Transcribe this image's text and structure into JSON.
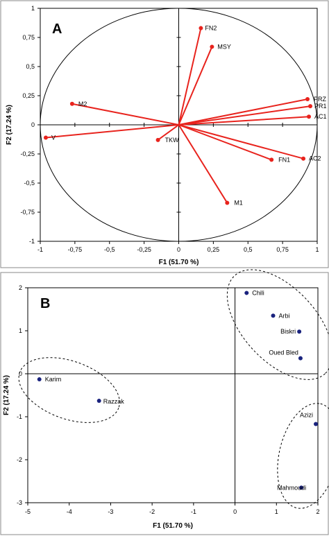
{
  "colors": {
    "vector": "#e8231d",
    "point": "#1a237e",
    "axis": "#000000",
    "ticks": "#000000"
  },
  "chart_data": [
    {
      "type": "scatter",
      "panel_label": "A",
      "xlabel": "F1 (51.70 %)",
      "ylabel": "F2 (17.24 %)",
      "xlim": [
        -1,
        1
      ],
      "ylim": [
        -1,
        1
      ],
      "x_ticks": [
        -1,
        -0.75,
        -0.5,
        -0.25,
        0,
        0.25,
        0.5,
        0.75,
        1
      ],
      "x_tick_labels": [
        "-1",
        "-0,75",
        "-0,5",
        "-0,25",
        "0",
        "0,25",
        "0,5",
        "0,75",
        "1"
      ],
      "y_ticks": [
        1,
        0.75,
        0.5,
        0.25,
        0,
        -0.25,
        -0.5,
        -0.75,
        -1
      ],
      "y_tick_labels": [
        "1",
        "0,75",
        "0,5",
        "0,25",
        "0",
        "-0,25",
        "-0,5",
        "-0,75",
        "-1"
      ],
      "correlation_circle": true,
      "vectors": [
        {
          "label": "FN2",
          "x": 0.16,
          "y": 0.83
        },
        {
          "label": "MSY",
          "x": 0.24,
          "y": 0.67
        },
        {
          "label": "PRZ",
          "x": 0.93,
          "y": 0.22
        },
        {
          "label": "PR1",
          "x": 0.95,
          "y": 0.16
        },
        {
          "label": "AC1",
          "x": 0.94,
          "y": 0.07
        },
        {
          "label": "AC2",
          "x": 0.9,
          "y": -0.29
        },
        {
          "label": "FN1",
          "x": 0.67,
          "y": -0.3
        },
        {
          "label": "M1",
          "x": 0.35,
          "y": -0.67
        },
        {
          "label": "TKW",
          "x": -0.15,
          "y": -0.13
        },
        {
          "label": "M2",
          "x": -0.77,
          "y": 0.18
        },
        {
          "label": "V",
          "x": -0.96,
          "y": -0.11
        }
      ]
    },
    {
      "type": "scatter",
      "panel_label": "B",
      "xlabel": "F1 (51.70 %)",
      "ylabel": "F2 (17.24 %)",
      "xlim": [
        -5,
        2
      ],
      "ylim": [
        -3,
        2
      ],
      "x_ticks": [
        -5,
        -4,
        -3,
        -2,
        -1,
        0,
        1,
        2
      ],
      "x_tick_labels": [
        "-5",
        "-4",
        "-3",
        "-2",
        "-1",
        "0",
        "1",
        "2"
      ],
      "y_ticks": [
        2,
        1,
        0,
        -1,
        -2,
        -3
      ],
      "y_tick_labels": [
        "2",
        "1",
        "0",
        "-1",
        "-2",
        "-3"
      ],
      "points": [
        {
          "label": "Chili",
          "x": 0.28,
          "y": 1.88
        },
        {
          "label": "Arbi",
          "x": 0.92,
          "y": 1.35
        },
        {
          "label": "Biskri",
          "x": 1.55,
          "y": 0.98
        },
        {
          "label": "Oued Bled",
          "x": 1.58,
          "y": 0.36
        },
        {
          "label": "Karim",
          "x": -4.72,
          "y": -0.13
        },
        {
          "label": "Razzak",
          "x": -3.28,
          "y": -0.63
        },
        {
          "label": "Azizi",
          "x": 1.95,
          "y": -1.17
        },
        {
          "label": "Mahmoudi",
          "x": 1.6,
          "y": -2.65
        }
      ],
      "groups": [
        {
          "members": [
            "Chili",
            "Arbi",
            "Biskri",
            "Oued Bled"
          ]
        },
        {
          "members": [
            "Karim",
            "Razzak"
          ]
        },
        {
          "members": [
            "Azizi",
            "Mahmoudi"
          ]
        }
      ]
    }
  ]
}
